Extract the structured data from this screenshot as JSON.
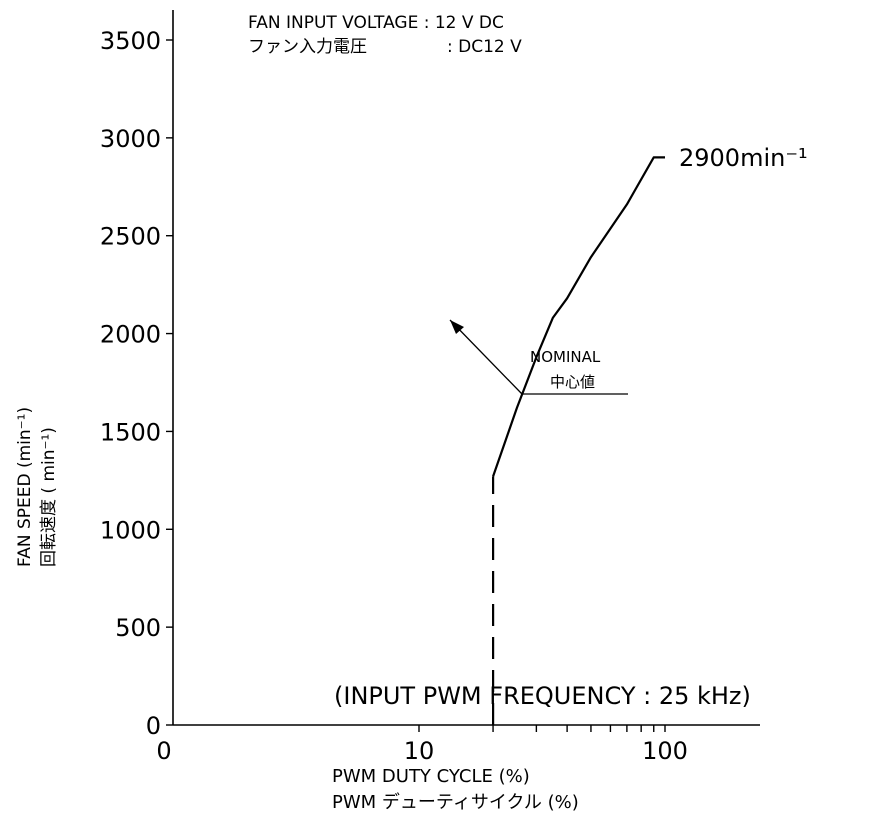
{
  "chart_data": {
    "type": "line",
    "title": "",
    "header": {
      "line1": "FAN INPUT VOLTAGE : 12 V DC",
      "line2_left": "ファン入力電圧",
      "line2_right": ":  DC12  V"
    },
    "xlabel": {
      "line1": "PWM DUTY CYCLE (%)",
      "line2": "PWM  デューティサイクル  (%)"
    },
    "ylabel": {
      "line1": "FAN SPEED  (min⁻¹)",
      "line2": "回転速度 ( min⁻¹)"
    },
    "x_scale": "log",
    "x_ticks": [
      {
        "value": 1,
        "label": "0"
      },
      {
        "value": 10,
        "label": "10"
      },
      {
        "value": 100,
        "label": "100"
      }
    ],
    "x_minor_ticks": [
      20,
      30,
      40,
      50,
      60,
      70,
      80,
      90
    ],
    "xlim": [
      1,
      200
    ],
    "ylim": [
      0,
      3500
    ],
    "y_ticks": [
      0,
      500,
      1000,
      1500,
      2000,
      2500,
      3000,
      3500
    ],
    "series": [
      {
        "style": "solid",
        "x": [
          20,
          25,
          30,
          35,
          40,
          50,
          70,
          90,
          100
        ],
        "y": [
          1270,
          1620,
          1880,
          2080,
          2180,
          2390,
          2660,
          2900,
          2900
        ]
      },
      {
        "style": "dashed",
        "x": [
          20,
          20
        ],
        "y": [
          0,
          1270
        ]
      }
    ],
    "annotations": {
      "end_value": "2900min⁻¹",
      "nominal": "NOMINAL",
      "nominal_ja": "中心値",
      "pwm_frequency": "(INPUT  PWM  FREQUENCY  :  25  kHz)"
    },
    "grid": false,
    "legend": "none"
  }
}
